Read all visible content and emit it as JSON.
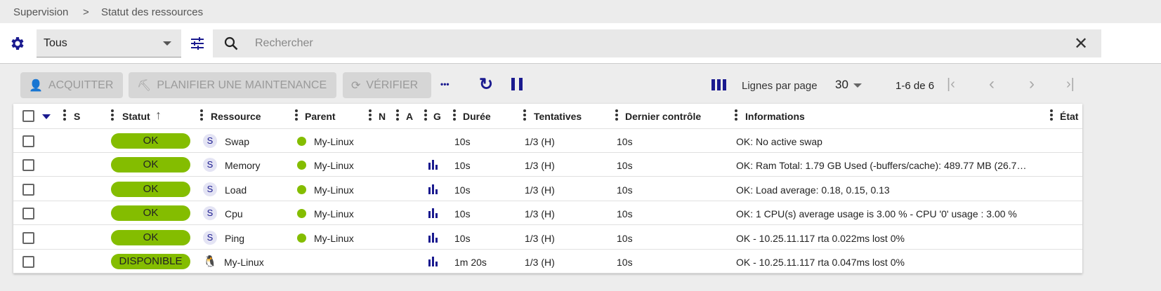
{
  "breadcrumb": [
    "Supervision",
    "Statut des ressources"
  ],
  "filter": {
    "selected": "Tous",
    "search_placeholder": "Rechercher"
  },
  "toolbar": {
    "acknowledge": "ACQUITTER",
    "maintenance": "PLANIFIER UNE MAINTENANCE",
    "check": "VÉRIFIER",
    "more": "•••",
    "rows_per_page_label": "Lignes par page",
    "rows_per_page": "30",
    "range": "1-6 de 6"
  },
  "columns": {
    "s": "S",
    "statut": "Statut",
    "ressource": "Ressource",
    "parent": "Parent",
    "n": "N",
    "a": "A",
    "g": "G",
    "duree": "Durée",
    "tentatives": "Tentatives",
    "dernier": "Dernier contrôle",
    "informations": "Informations",
    "etat": "État"
  },
  "colors": {
    "accent": "#1a1a8f",
    "ok": "#84bd00"
  },
  "rows": [
    {
      "status": "OK",
      "badge": "S",
      "resource": "Swap",
      "parent": "My-Linux",
      "graph": false,
      "duration": "10s",
      "tries": "1/3 (H)",
      "last": "10s",
      "info": "OK: No active swap"
    },
    {
      "status": "OK",
      "badge": "S",
      "resource": "Memory",
      "parent": "My-Linux",
      "graph": true,
      "duration": "10s",
      "tries": "1/3 (H)",
      "last": "10s",
      "info": "OK: Ram Total: 1.79 GB Used (-buffers/cache): 489.77 MB (26.7…"
    },
    {
      "status": "OK",
      "badge": "S",
      "resource": "Load",
      "parent": "My-Linux",
      "graph": true,
      "duration": "10s",
      "tries": "1/3 (H)",
      "last": "10s",
      "info": "OK: Load average: 0.18, 0.15, 0.13"
    },
    {
      "status": "OK",
      "badge": "S",
      "resource": "Cpu",
      "parent": "My-Linux",
      "graph": true,
      "duration": "10s",
      "tries": "1/3 (H)",
      "last": "10s",
      "info": "OK: 1 CPU(s) average usage is 3.00 % - CPU '0' usage : 3.00 %"
    },
    {
      "status": "OK",
      "badge": "S",
      "resource": "Ping",
      "parent": "My-Linux",
      "graph": true,
      "duration": "10s",
      "tries": "1/3 (H)",
      "last": "10s",
      "info": "OK - 10.25.11.117 rta 0.022ms lost 0%"
    },
    {
      "status": "DISPONIBLE",
      "badge": "linux-icon",
      "resource": "My-Linux",
      "parent": "",
      "graph": true,
      "duration": "1m 20s",
      "tries": "1/3 (H)",
      "last": "10s",
      "info": "OK - 10.25.11.117 rta 0.047ms lost 0%"
    }
  ]
}
